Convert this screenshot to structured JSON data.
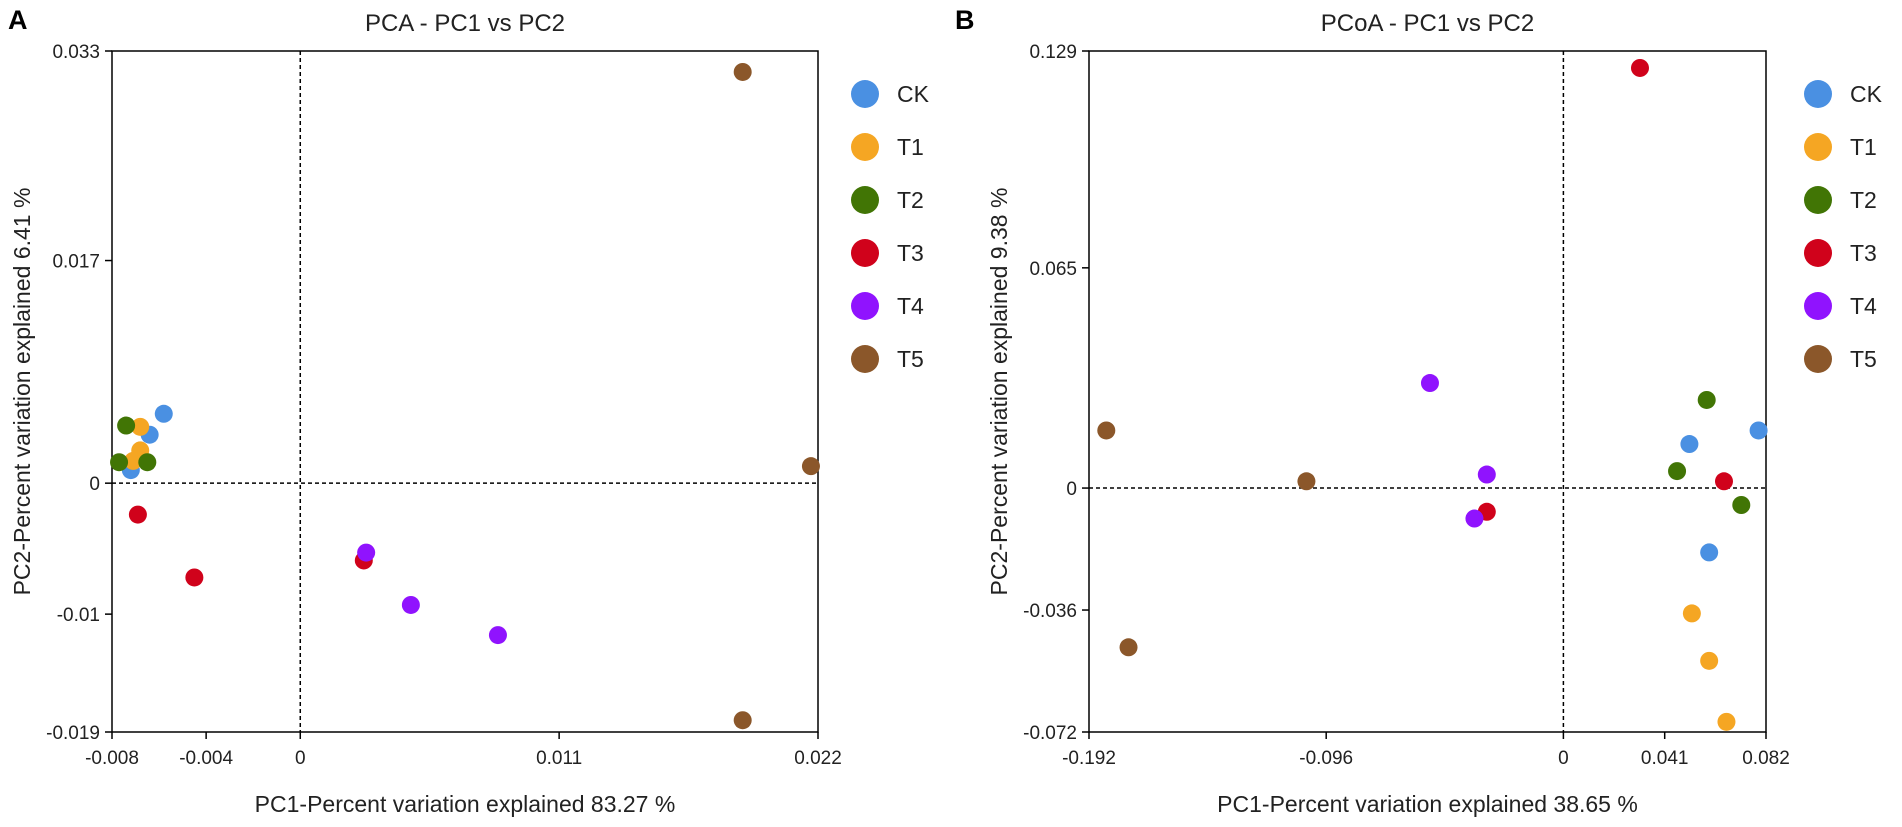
{
  "chart_data": [
    {
      "type": "scatter",
      "panel": "A",
      "title": "PCA - PC1 vs PC2",
      "xlabel": "PC1-Percent variation explained 83.27 %",
      "ylabel": "PC2-Percent variation explained 6.41 %",
      "xlim": [
        -0.008,
        0.022
      ],
      "ylim": [
        -0.019,
        0.033
      ],
      "xticks": [
        -0.008,
        -0.004,
        0,
        0.011,
        0.022
      ],
      "xtick_labels": [
        "-0.008",
        "-0.004",
        "0",
        "0.011",
        "0.022"
      ],
      "yticks": [
        -0.019,
        -0.01,
        0,
        0.017,
        0.033
      ],
      "ytick_labels": [
        "-0.019",
        "-0.01",
        "0",
        "0.017",
        "0.033"
      ],
      "grid": false,
      "legend_position": "right",
      "series": [
        {
          "name": "CK",
          "color": "#4a90e2",
          "points": [
            [
              -0.0058,
              0.0053
            ],
            [
              -0.0064,
              0.0037
            ],
            [
              -0.0072,
              0.001
            ]
          ]
        },
        {
          "name": "T1",
          "color": "#f5a623",
          "points": [
            [
              -0.0068,
              0.0043
            ],
            [
              -0.0068,
              0.0025
            ],
            [
              -0.0071,
              0.0017
            ]
          ]
        },
        {
          "name": "T2",
          "color": "#417505",
          "points": [
            [
              -0.0074,
              0.0044
            ],
            [
              -0.0077,
              0.0016
            ],
            [
              -0.0065,
              0.0016
            ]
          ]
        },
        {
          "name": "T3",
          "color": "#d0021b",
          "points": [
            [
              -0.0069,
              -0.0024
            ],
            [
              -0.0045,
              -0.0072
            ],
            [
              0.0027,
              -0.0059
            ]
          ]
        },
        {
          "name": "T4",
          "color": "#9013fe",
          "points": [
            [
              0.0028,
              -0.0053
            ],
            [
              0.0047,
              -0.0093
            ],
            [
              0.0084,
              -0.0116
            ]
          ]
        },
        {
          "name": "T5",
          "color": "#8b572a",
          "points": [
            [
              0.0188,
              0.0314
            ],
            [
              0.0217,
              0.0013
            ],
            [
              0.0188,
              -0.0181
            ]
          ]
        }
      ]
    },
    {
      "type": "scatter",
      "panel": "B",
      "title": "PCoA - PC1 vs PC2",
      "xlabel": "PC1-Percent variation explained 38.65 %",
      "ylabel": "PC2-Percent variation explained 9.38 %",
      "xlim": [
        -0.192,
        0.082
      ],
      "ylim": [
        -0.072,
        0.129
      ],
      "xticks": [
        -0.192,
        -0.096,
        0,
        0.041,
        0.082
      ],
      "xtick_labels": [
        "-0.192",
        "-0.096",
        "0",
        "0.041",
        "0.082"
      ],
      "yticks": [
        -0.072,
        -0.036,
        0,
        0.065,
        0.129
      ],
      "ytick_labels": [
        "-0.072",
        "-0.036",
        "0",
        "0.065",
        "0.129"
      ],
      "grid": false,
      "legend_position": "right",
      "series": [
        {
          "name": "CK",
          "color": "#4a90e2",
          "points": [
            [
              0.051,
              0.013
            ],
            [
              0.079,
              0.017
            ],
            [
              0.059,
              -0.019
            ]
          ]
        },
        {
          "name": "T1",
          "color": "#f5a623",
          "points": [
            [
              0.052,
              -0.037
            ],
            [
              0.059,
              -0.051
            ],
            [
              0.066,
              -0.069
            ]
          ]
        },
        {
          "name": "T2",
          "color": "#417505",
          "points": [
            [
              0.058,
              0.026
            ],
            [
              0.046,
              0.005
            ],
            [
              0.072,
              -0.005
            ]
          ]
        },
        {
          "name": "T3",
          "color": "#d0021b",
          "points": [
            [
              0.031,
              0.124
            ],
            [
              0.065,
              0.002
            ],
            [
              -0.031,
              -0.007
            ]
          ]
        },
        {
          "name": "T4",
          "color": "#9013fe",
          "points": [
            [
              -0.054,
              0.031
            ],
            [
              -0.031,
              0.004
            ],
            [
              -0.036,
              -0.009
            ]
          ]
        },
        {
          "name": "T5",
          "color": "#8b572a",
          "points": [
            [
              -0.185,
              0.017
            ],
            [
              -0.176,
              -0.047
            ],
            [
              -0.104,
              0.002
            ]
          ]
        }
      ]
    }
  ]
}
